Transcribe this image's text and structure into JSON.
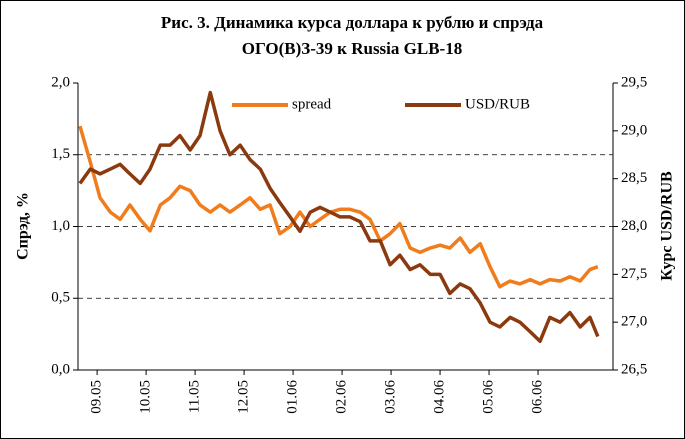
{
  "chart_data": {
    "type": "line",
    "title": [
      "Рис. 3. Динамика курса доллара к рублю и спрэда",
      "ОГО(В)З-39 к Russia GLB-18"
    ],
    "ylabel": "Спрэд, %",
    "y2label": "Курс USD/RUB",
    "xlim": [
      -0.39,
      10.53
    ],
    "xticks": [
      {
        "value": 0,
        "label": "09.05"
      },
      {
        "value": 1,
        "label": "10.05"
      },
      {
        "value": 2,
        "label": "11.05"
      },
      {
        "value": 3,
        "label": "12.05"
      },
      {
        "value": 4,
        "label": "01.06"
      },
      {
        "value": 5,
        "label": "02.06"
      },
      {
        "value": 6,
        "label": "03.06"
      },
      {
        "value": 7,
        "label": "04.06"
      },
      {
        "value": 8,
        "label": "05.06"
      },
      {
        "value": 9,
        "label": "06.06"
      }
    ],
    "ylim": [
      0,
      2
    ],
    "yticks": [
      {
        "value": 0,
        "label": "0,0"
      },
      {
        "value": 0.5,
        "label": "0,5"
      },
      {
        "value": 1,
        "label": "1,0"
      },
      {
        "value": 1.5,
        "label": "1,5"
      },
      {
        "value": 2,
        "label": "2,0"
      }
    ],
    "y2lim": [
      26.5,
      29.5
    ],
    "y2ticks": [
      {
        "value": 26.5,
        "label": "26,5"
      },
      {
        "value": 27,
        "label": "27,0"
      },
      {
        "value": 27.5,
        "label": "27,5"
      },
      {
        "value": 28,
        "label": "28,0"
      },
      {
        "value": 28.5,
        "label": "28,5"
      },
      {
        "value": 29,
        "label": "29,0"
      },
      {
        "value": 29.5,
        "label": "29,5"
      }
    ],
    "grid": true,
    "legend": "top",
    "x": [
      -0.35,
      -0.14,
      0.06,
      0.27,
      0.47,
      0.67,
      0.88,
      1.08,
      1.29,
      1.49,
      1.69,
      1.9,
      2.1,
      2.31,
      2.51,
      2.71,
      2.92,
      3.12,
      3.33,
      3.53,
      3.73,
      3.94,
      4.14,
      4.35,
      4.55,
      4.76,
      4.96,
      5.16,
      5.37,
      5.57,
      5.78,
      5.98,
      6.18,
      6.39,
      6.59,
      6.8,
      7.0,
      7.2,
      7.41,
      7.61,
      7.82,
      8.02,
      8.22,
      8.43,
      8.63,
      8.84,
      9.04,
      9.24,
      9.45,
      9.65,
      9.86,
      10.06,
      10.22
    ],
    "series": [
      {
        "name": "spread",
        "color": "#f07c1c",
        "values": [
          1.7,
          1.45,
          1.2,
          1.1,
          1.05,
          1.15,
          1.05,
          0.97,
          1.15,
          1.2,
          1.28,
          1.25,
          1.15,
          1.1,
          1.15,
          1.1,
          1.15,
          1.2,
          1.12,
          1.15,
          0.95,
          1.0,
          1.1,
          1.0,
          1.05,
          1.1,
          1.12,
          1.12,
          1.1,
          1.05,
          0.9,
          0.95,
          1.02,
          0.85,
          0.82,
          0.85,
          0.87,
          0.85,
          0.92,
          0.82,
          0.88,
          0.72,
          0.58,
          0.62,
          0.6,
          0.63,
          0.6,
          0.63,
          0.62,
          0.65,
          0.62,
          0.7,
          0.72
        ]
      },
      {
        "name": "USD/RUB",
        "color": "#8b3a0f",
        "axis": "y2",
        "values": [
          28.45,
          28.6,
          28.55,
          28.6,
          28.65,
          28.55,
          28.45,
          28.6,
          28.85,
          28.85,
          28.95,
          28.8,
          28.95,
          29.4,
          29.0,
          28.75,
          28.85,
          28.7,
          28.6,
          28.4,
          28.25,
          28.1,
          27.95,
          28.15,
          28.2,
          28.15,
          28.1,
          28.1,
          28.05,
          27.85,
          27.85,
          27.6,
          27.7,
          27.55,
          27.6,
          27.5,
          27.5,
          27.3,
          27.4,
          27.35,
          27.2,
          27.0,
          26.95,
          27.05,
          27.0,
          26.9,
          26.8,
          27.05,
          27.0,
          27.1,
          26.95,
          27.05,
          26.85
        ]
      }
    ]
  }
}
